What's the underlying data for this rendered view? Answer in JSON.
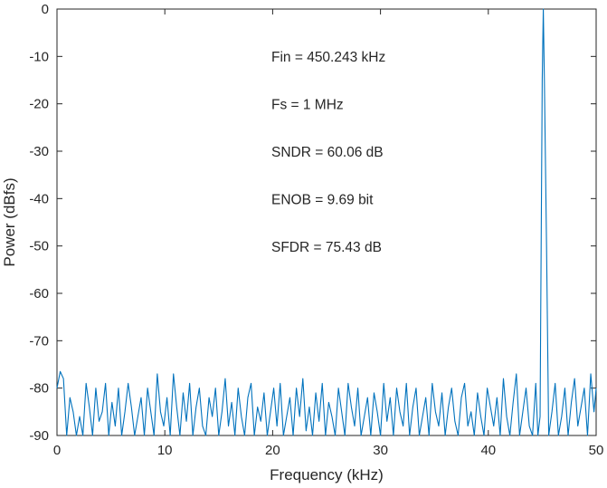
{
  "chart_data": {
    "type": "line",
    "xlabel": "Frequency (kHz)",
    "ylabel": "Power (dBfs)",
    "xlim": [
      0,
      50
    ],
    "ylim": [
      -90,
      0
    ],
    "xticks": [
      0,
      10,
      20,
      30,
      40,
      50
    ],
    "yticks": [
      0,
      -10,
      -20,
      -30,
      -40,
      -50,
      -60,
      -70,
      -80,
      -90
    ],
    "grid": false,
    "legend": "none",
    "annotations": [
      "Fin = 450.243 kHz",
      "Fs = 1 MHz",
      "SNDR = 60.06 dB",
      "ENOB = 9.69 bit",
      "SFDR = 75.43 dB"
    ],
    "series": [
      {
        "color": "#0072BD",
        "x": [
          0,
          0.3,
          0.6,
          0.9,
          1.2,
          1.5,
          1.8,
          2.1,
          2.4,
          2.7,
          3.0,
          3.3,
          3.6,
          3.9,
          4.2,
          4.5,
          4.8,
          5.1,
          5.4,
          5.7,
          6.0,
          6.3,
          6.6,
          6.9,
          7.2,
          7.5,
          7.8,
          8.1,
          8.4,
          8.7,
          9.0,
          9.3,
          9.6,
          9.9,
          10.2,
          10.5,
          10.8,
          11.1,
          11.4,
          11.7,
          12.0,
          12.3,
          12.6,
          12.9,
          13.2,
          13.5,
          13.8,
          14.1,
          14.4,
          14.7,
          15.0,
          15.3,
          15.6,
          15.9,
          16.2,
          16.5,
          16.8,
          17.1,
          17.4,
          17.7,
          18.0,
          18.3,
          18.6,
          18.9,
          19.2,
          19.5,
          19.8,
          20.1,
          20.4,
          20.7,
          21.0,
          21.3,
          21.6,
          21.9,
          22.2,
          22.5,
          22.8,
          23.1,
          23.4,
          23.7,
          24.0,
          24.3,
          24.6,
          24.9,
          25.2,
          25.5,
          25.8,
          26.1,
          26.4,
          26.7,
          27.0,
          27.3,
          27.6,
          27.9,
          28.2,
          28.5,
          28.8,
          29.1,
          29.4,
          29.7,
          30.0,
          30.3,
          30.6,
          30.9,
          31.2,
          31.5,
          31.8,
          32.1,
          32.4,
          32.7,
          33.0,
          33.3,
          33.6,
          33.9,
          34.2,
          34.5,
          34.8,
          35.1,
          35.4,
          35.7,
          36.0,
          36.3,
          36.6,
          36.9,
          37.2,
          37.5,
          37.8,
          38.1,
          38.4,
          38.7,
          39.0,
          39.3,
          39.6,
          39.9,
          40.2,
          40.5,
          40.8,
          41.1,
          41.4,
          41.7,
          42.0,
          42.3,
          42.6,
          42.9,
          43.2,
          43.5,
          43.8,
          44.1,
          44.4,
          44.6,
          44.8,
          44.9,
          45.0,
          45.1,
          45.2,
          45.4,
          45.6,
          45.9,
          46.2,
          46.5,
          46.8,
          47.1,
          47.4,
          47.7,
          48.0,
          48.3,
          48.6,
          48.9,
          49.2,
          49.5,
          49.8,
          50.0
        ],
        "y": [
          -80,
          -76.5,
          -78,
          -90,
          -82,
          -85,
          -90,
          -86,
          -90,
          -79,
          -84,
          -90,
          -80,
          -87,
          -85,
          -79,
          -90,
          -83,
          -88,
          -80,
          -90,
          -85,
          -79,
          -84,
          -90,
          -86,
          -82,
          -90,
          -80,
          -85,
          -90,
          -77,
          -85,
          -88,
          -82,
          -90,
          -77,
          -84,
          -90,
          -81,
          -87,
          -79,
          -90,
          -84,
          -80,
          -88,
          -90,
          -82,
          -86,
          -80,
          -90,
          -85,
          -78,
          -88,
          -83,
          -90,
          -80,
          -86,
          -90,
          -82,
          -79,
          -90,
          -84,
          -87,
          -81,
          -90,
          -85,
          -80,
          -88,
          -79,
          -90,
          -86,
          -82,
          -90,
          -80,
          -86,
          -78,
          -89,
          -84,
          -90,
          -81,
          -87,
          -79,
          -90,
          -83,
          -86,
          -90,
          -80,
          -85,
          -90,
          -79,
          -84,
          -88,
          -80,
          -90,
          -86,
          -82,
          -90,
          -81,
          -85,
          -90,
          -79,
          -87,
          -82,
          -90,
          -80,
          -85,
          -88,
          -79,
          -90,
          -84,
          -80,
          -90,
          -86,
          -82,
          -90,
          -79,
          -85,
          -88,
          -81,
          -90,
          -84,
          -80,
          -87,
          -90,
          -82,
          -79,
          -88,
          -85,
          -90,
          -81,
          -86,
          -90,
          -80,
          -84,
          -88,
          -82,
          -90,
          -78,
          -86,
          -90,
          -83,
          -77,
          -90,
          -85,
          -80,
          -88,
          -90,
          -79,
          -90,
          -86,
          -50,
          -15,
          0,
          -15,
          -50,
          -90,
          -85,
          -79,
          -90,
          -86,
          -80,
          -90,
          -83,
          -78,
          -88,
          -84,
          -80,
          -90,
          -77,
          -85,
          -80
        ]
      }
    ]
  }
}
